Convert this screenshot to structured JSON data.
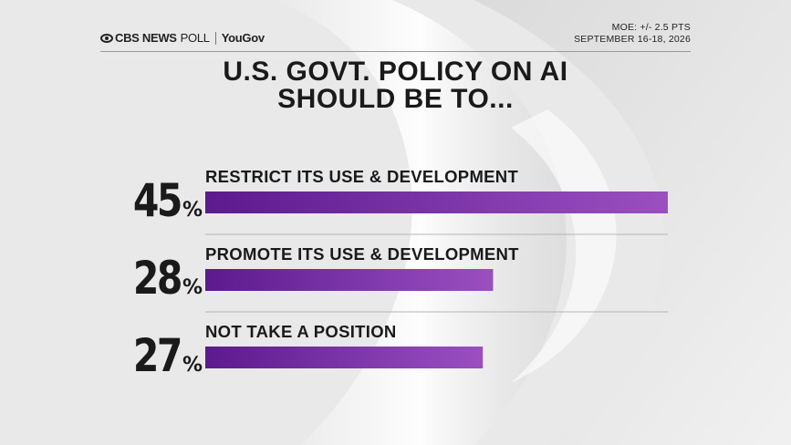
{
  "header": {
    "brand": "CBS NEWS",
    "poll_word": "POLL",
    "partner": "YouGov",
    "moe": "MOE: +/- 2.5 PTS",
    "dates": "SEPTEMBER 16-18, 2026"
  },
  "colors": {
    "bar_start": "#5b1a8e",
    "bar_end": "#9b4fc0",
    "text": "#1a1a1a",
    "background": "#ededed"
  },
  "chart_data": {
    "type": "bar",
    "orientation": "horizontal",
    "title": "U.S. GOVT. POLICY ON AI SHOULD BE TO...",
    "title_lines": [
      "U.S. GOVT. POLICY ON AI",
      "SHOULD BE TO..."
    ],
    "categories": [
      "RESTRICT ITS USE & DEVELOPMENT",
      "PROMOTE ITS USE & DEVELOPMENT",
      "NOT TAKE A POSITION"
    ],
    "values": [
      45,
      28,
      27
    ],
    "value_labels": [
      "45",
      "28",
      "27"
    ],
    "unit": "%",
    "xlim": [
      0,
      45
    ],
    "grid": false,
    "legend": "none"
  }
}
